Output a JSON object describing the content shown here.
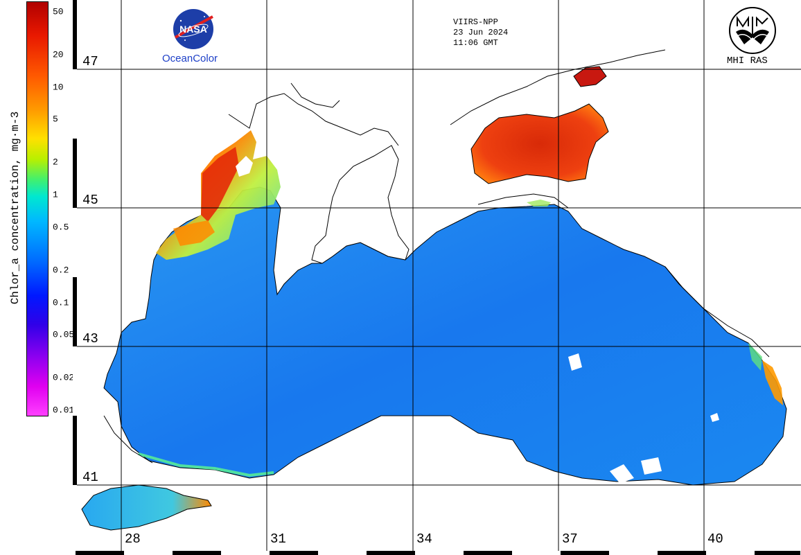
{
  "colorbar": {
    "title": "Chlor_a concentration, mg·m-3",
    "ticks": [
      {
        "label": "50",
        "value": 50
      },
      {
        "label": "20",
        "value": 20
      },
      {
        "label": "10",
        "value": 10
      },
      {
        "label": "5",
        "value": 5
      },
      {
        "label": "2",
        "value": 2
      },
      {
        "label": "1",
        "value": 1
      },
      {
        "label": "0.5",
        "value": 0.5
      },
      {
        "label": "0.2",
        "value": 0.2
      },
      {
        "label": "0.1",
        "value": 0.1
      },
      {
        "label": "0.05",
        "value": 0.05
      },
      {
        "label": "0.02",
        "value": 0.02
      },
      {
        "label": "0.01",
        "value": 0.01
      }
    ],
    "scale": "log",
    "range": [
      0.01,
      50
    ]
  },
  "header": {
    "sensor": "VIIRS-NPP",
    "date": "23 Jun 2024",
    "time": "11:06 GMT"
  },
  "logos": {
    "nasa": "NASA",
    "ocean_color": "OceanColor",
    "mhi": "MHI RAS"
  },
  "grid": {
    "latitudes": [
      "47",
      "45",
      "43",
      "41"
    ],
    "longitudes": [
      "28",
      "31",
      "34",
      "37",
      "40"
    ]
  },
  "colors": {
    "sea_low": "#1a8cf0",
    "sea_deep": "#1070e8",
    "sea_mid": "#2aa8f0",
    "bloom_high": "#e83010",
    "bloom_mid": "#ff9a00",
    "shelf_green": "#a0f060",
    "coast_line": "#000000"
  }
}
